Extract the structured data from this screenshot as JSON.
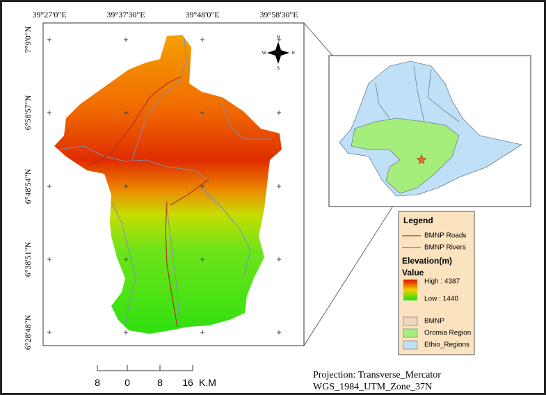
{
  "map": {
    "x_labels": [
      "39°27'0\"E",
      "39°37'30\"E",
      "39°48'0\"E",
      "39°58'30\"E"
    ],
    "y_labels": [
      "7°9'0\"N",
      "6°58'57\"N",
      "6°48'54\"N",
      "6°38'51\"N",
      "6°28'48\"N"
    ],
    "north_arrow": {
      "n": "N",
      "e": "E",
      "s": "S",
      "w": "W"
    }
  },
  "legend": {
    "title": "Legend",
    "roads": "BMNP Roads",
    "rivers": "BMNP Rivers",
    "elevation_title": "Elevation(m)",
    "value_title": "Value",
    "high": "High : 4387",
    "low": "Low : 1440",
    "bmnp": "BMNP",
    "oromia": "Oromia Region",
    "ethio": "Ethio_Regions"
  },
  "scale_bar": {
    "labels": [
      "8",
      "0",
      "8",
      "16"
    ],
    "unit": "K.M"
  },
  "projection": [
    "Projection: Transverse_Mercator",
    "WGS_1984_UTM_Zone_37N"
  ]
}
